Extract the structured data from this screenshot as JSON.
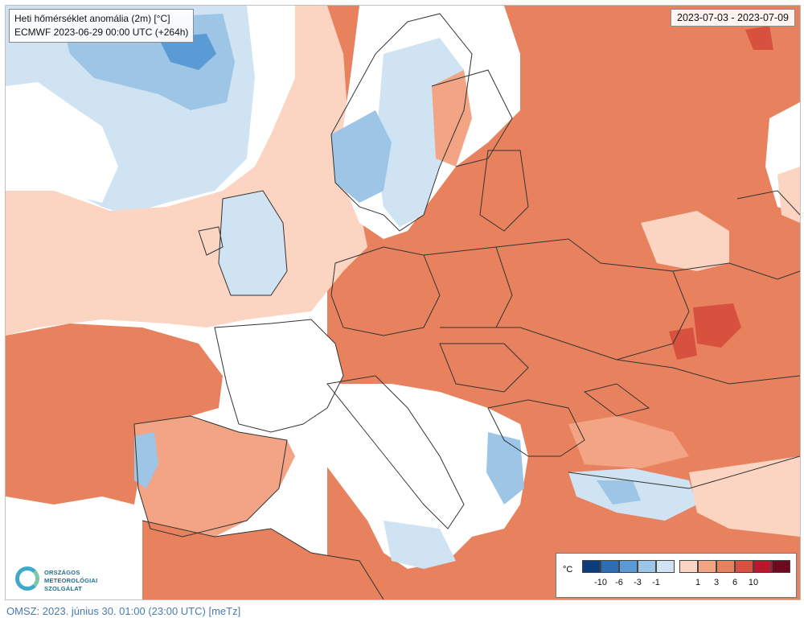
{
  "map": {
    "title": "Heti hőmérséklet anomália (2m) [°C]",
    "subtitle": "ECMWF 2023-06-29 00:00 UTC (+264h)",
    "date_range": "2023-07-03 - 2023-07-09",
    "colors": {
      "cold_strong": "#0b3d7a",
      "cold_3": "#2f6db5",
      "cold_2": "#5b9bd5",
      "cold_1": "#9cc5e6",
      "cold_weak": "#cfe3f3",
      "neutral": "#ffffff",
      "warm_weak": "#fbd4c2",
      "warm_1": "#f2a485",
      "warm_2": "#e8825e",
      "warm_3": "#d8503e",
      "warm_strong": "#b8182c",
      "warm_extreme": "#6e0a1e",
      "border": "#333333"
    }
  },
  "legend": {
    "unit": "°C",
    "cold_ticks": [
      "-10",
      "-6",
      "-3",
      "-1"
    ],
    "warm_ticks": [
      "1",
      "3",
      "6",
      "10"
    ],
    "cold_colors": [
      "#0b3d7a",
      "#2f6db5",
      "#5b9bd5",
      "#9cc5e6",
      "#cfe3f3"
    ],
    "warm_colors": [
      "#fbd4c2",
      "#f2a485",
      "#e8825e",
      "#d8503e",
      "#b8182c",
      "#6e0a1e"
    ]
  },
  "logo": {
    "line1": "ORSZÁGOS",
    "line2": "METEOROLÓGIAI",
    "line3": "SZOLGÁLAT"
  },
  "footer": "OMSZ: 2023. június 30. 01:00 (23:00 UTC)  [meTz]"
}
